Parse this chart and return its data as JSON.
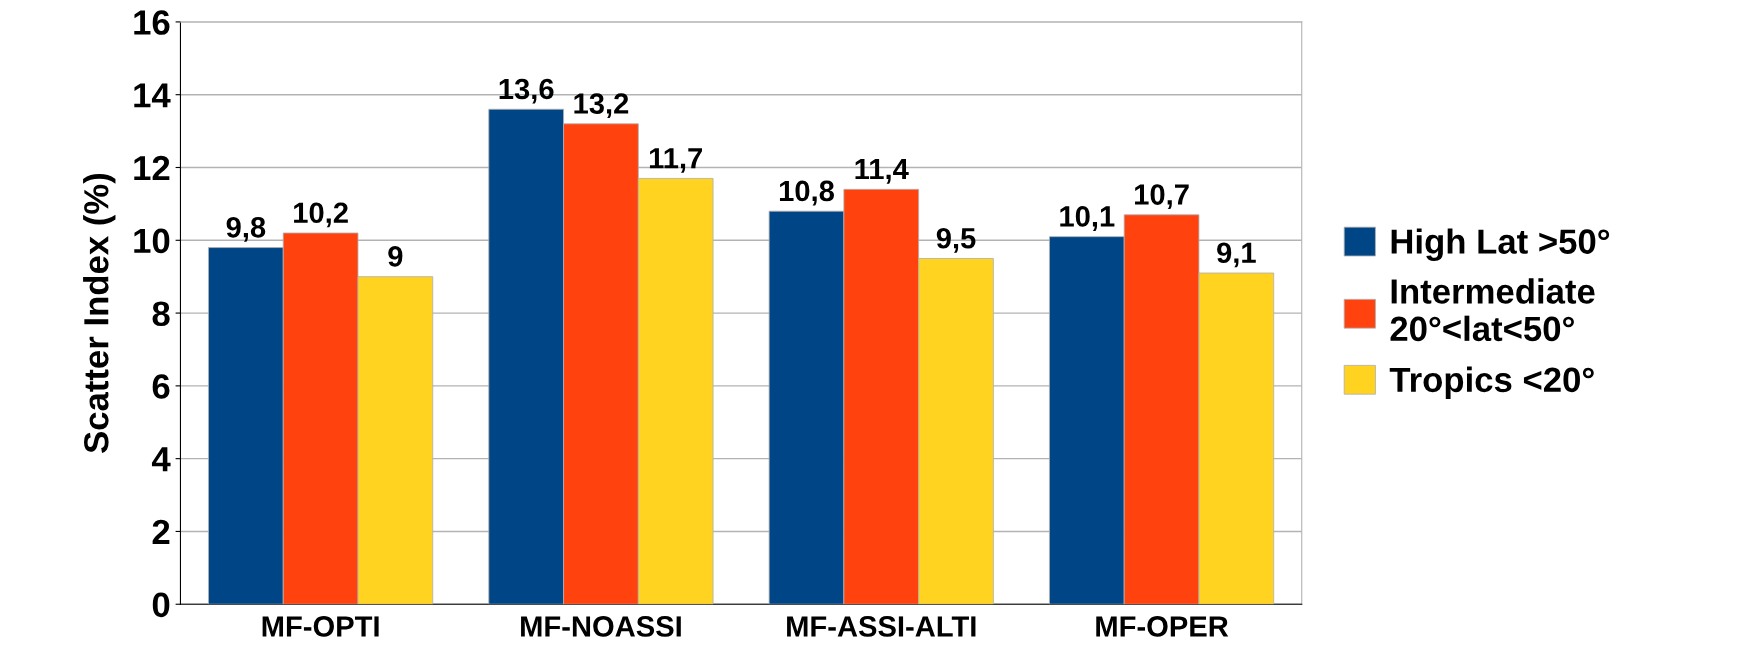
{
  "chart_data": {
    "type": "bar",
    "ylabel": "Scatter Index (%)",
    "categories": [
      "MF-OPTI",
      "MF-NOASSI",
      "MF-ASSI-ALTI",
      "MF-OPER"
    ],
    "series": [
      {
        "name": "High Lat >50°",
        "color": "#004586",
        "values": [
          9.8,
          13.6,
          10.8,
          10.1
        ],
        "value_labels": [
          "9,8",
          "13,6",
          "10,8",
          "10,1"
        ]
      },
      {
        "name": "Intermediate\n20°<lat<50°",
        "color": "#ff420e",
        "values": [
          10.2,
          13.2,
          11.4,
          10.7
        ],
        "value_labels": [
          "10,2",
          "13,2",
          "11,4",
          "10,7"
        ]
      },
      {
        "name": "Tropics <20°",
        "color": "#ffd320",
        "values": [
          9,
          11.7,
          9.5,
          9.1
        ],
        "value_labels": [
          "9",
          "11,7",
          "9,5",
          "9,1"
        ]
      }
    ],
    "ylim": [
      0,
      16
    ],
    "yticks": [
      0,
      2,
      4,
      6,
      8,
      10,
      12,
      14,
      16
    ],
    "grid": "y",
    "legend": "right"
  }
}
